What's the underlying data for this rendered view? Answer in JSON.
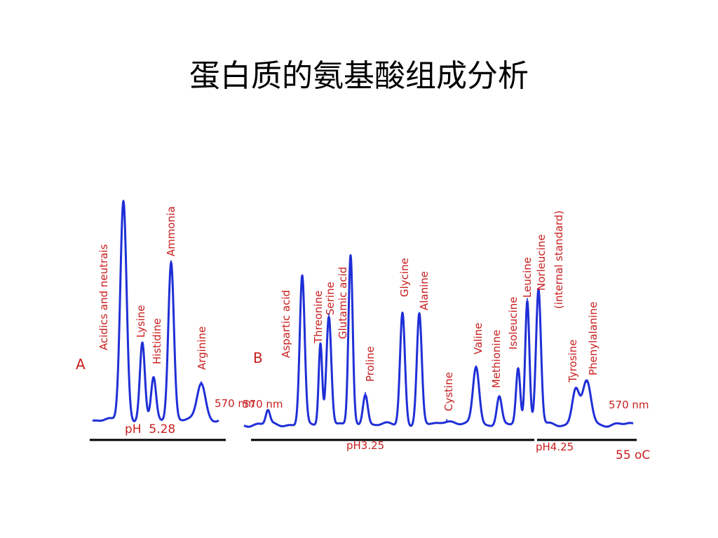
{
  "slide": {
    "title": "蛋白质的氨基酸组成分析"
  },
  "colors": {
    "trace": "#1f2fd6",
    "label": "#c81e1e",
    "axis_text": "#c81e1e",
    "baseline_bar": "#000000"
  },
  "chart_data": [
    {
      "type": "line",
      "panel_label": "A",
      "peaks": [
        {
          "name": "Acidics and neutrais",
          "height": 0.98
        },
        {
          "name": "Lysine",
          "height": 0.34
        },
        {
          "name": "Histidine",
          "height": 0.19
        },
        {
          "name": "Ammonia",
          "height": 0.71
        },
        {
          "name": "Arginine",
          "height": 0.17
        }
      ],
      "wavelength_label": "570 nm",
      "condition_label": "pH  5.28"
    },
    {
      "type": "line",
      "panel_label": "B",
      "peaks": [
        {
          "name": "Aspartic acid",
          "height": 0.06
        },
        {
          "name": "Threonine",
          "height": 0.66
        },
        {
          "name": "Serine",
          "height": 0.36
        },
        {
          "name": "Glutamic acid",
          "height": 0.49
        },
        {
          "name": "",
          "height": 0.75
        },
        {
          "name": "Proline",
          "height": 0.14
        },
        {
          "name": "Glycine",
          "height": 0.5
        },
        {
          "name": "Alanine",
          "height": 0.49
        },
        {
          "name": "Cystine",
          "height": 0.02
        },
        {
          "name": "Valine",
          "height": 0.26
        },
        {
          "name": "Methionine",
          "height": 0.12
        },
        {
          "name": "Isoleucine",
          "height": 0.25
        },
        {
          "name": "Leucine",
          "height": 0.56
        },
        {
          "name": "Norleucine (internal standard)",
          "height": 0.6
        },
        {
          "name": "Tyrosine",
          "height": 0.16
        },
        {
          "name": "Phenylalanine",
          "height": 0.19
        }
      ],
      "wavelength_label_left": "570 nm",
      "wavelength_label_right": "570 nm",
      "buffer_labels": [
        "pH3.25",
        "pH4.25"
      ],
      "temperature_label": "55 oC"
    }
  ]
}
